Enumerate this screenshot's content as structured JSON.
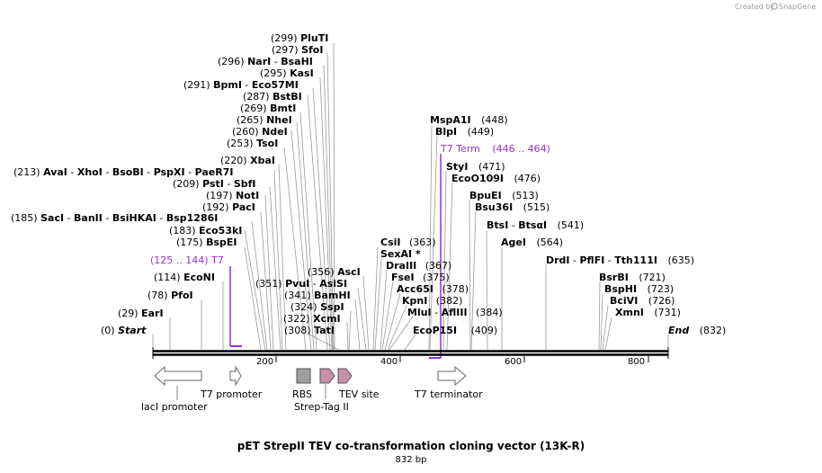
{
  "credit": {
    "prefix": "Created by",
    "brand": "SnapGene"
  },
  "title": "pET StrepII TEV co-transformation cloning vector (13K-R)",
  "length_label": "832 bp",
  "length_bp": 832,
  "ticks": [
    "200",
    "400",
    "600",
    "800"
  ],
  "colors": {
    "purple": "#9b30d0",
    "backbone": "#000000",
    "rbs": "#9e9e9e",
    "strep": "#c78fa8"
  },
  "sites": {
    "s_start": {
      "pos": "(0)",
      "name": "Start"
    },
    "s_ear": {
      "pos": "(29)",
      "name": "EarI"
    },
    "s_pfo": {
      "pos": "(78)",
      "name": "PfoI"
    },
    "s_eco": {
      "pos": "(114)",
      "name": "EcoNI"
    },
    "s_bspe": {
      "pos": "(175)",
      "name": "BspEI"
    },
    "s_eco53": {
      "pos": "(183)",
      "name": "Eco53kI"
    },
    "s_sac": {
      "pos": "(185)",
      "n1": "SacI",
      "n2": "BanII",
      "n3": "BsiHKAI",
      "n4": "Bsp1286I"
    },
    "s_pac": {
      "pos": "(192)",
      "name": "PacI"
    },
    "s_not": {
      "pos": "(197)",
      "name": "NotI"
    },
    "s_pst": {
      "pos": "(209)",
      "n1": "PstI",
      "n2": "SbfI"
    },
    "s_ava": {
      "pos": "(213)",
      "n1": "AvaI",
      "n2": "XhoI",
      "n3": "BsoBI",
      "n4": "PspXI",
      "n5": "PaeR7I"
    },
    "s_xba": {
      "pos": "(220)",
      "name": "XbaI"
    },
    "s_tso": {
      "pos": "(253)",
      "name": "TsoI"
    },
    "s_nde": {
      "pos": "(260)",
      "name": "NdeI"
    },
    "s_nhe": {
      "pos": "(265)",
      "name": "NheI"
    },
    "s_bmt": {
      "pos": "(269)",
      "name": "BmtI"
    },
    "s_bst": {
      "pos": "(287)",
      "name": "BstBI"
    },
    "s_bpm": {
      "pos": "(291)",
      "n1": "BpmI",
      "n2": "Eco57MI"
    },
    "s_kas": {
      "pos": "(295)",
      "name": "KasI"
    },
    "s_nar": {
      "pos": "(296)",
      "n1": "NarI",
      "n2": "BsaHI"
    },
    "s_sfo": {
      "pos": "(297)",
      "name": "SfoI"
    },
    "s_plu": {
      "pos": "(299)",
      "name": "PluTI"
    },
    "s_tat": {
      "pos": "(308)",
      "name": "TatI"
    },
    "s_xcm": {
      "pos": "(322)",
      "name": "XcmI"
    },
    "s_ssp": {
      "pos": "(324)",
      "name": "SspI"
    },
    "s_bam": {
      "pos": "(341)",
      "name": "BamHI"
    },
    "s_pvu": {
      "pos": "(351)",
      "n1": "PvuI",
      "n2": "AsiSI"
    },
    "s_asc": {
      "pos": "(356)",
      "name": "AscI"
    },
    "s_csi": {
      "pos": "(363)",
      "name": "CsiI"
    },
    "s_sexa": {
      "name": "SexAI *"
    },
    "s_dra": {
      "pos": "(367)",
      "name": "DraIII"
    },
    "s_fse": {
      "pos": "(375)",
      "name": "FseI"
    },
    "s_acc": {
      "pos": "(378)",
      "name": "Acc65I"
    },
    "s_kpn": {
      "pos": "(382)",
      "name": "KpnI"
    },
    "s_mlu": {
      "pos": "(384)",
      "n1": "MluI",
      "n2": "AflIII"
    },
    "s_ecop": {
      "pos": "(409)",
      "name": "EcoP15I"
    },
    "s_mspa": {
      "pos": "(448)",
      "name": "MspA1I"
    },
    "s_blp": {
      "pos": "(449)",
      "name": "BlpI"
    },
    "s_sty": {
      "pos": "(471)",
      "name": "StyI"
    },
    "s_eco109": {
      "pos": "(476)",
      "name": "EcoO109I"
    },
    "s_bpue": {
      "pos": "(513)",
      "name": "BpuEI"
    },
    "s_bsu": {
      "pos": "(515)",
      "name": "Bsu36I"
    },
    "s_bts": {
      "pos": "(541)",
      "n1": "BtsI",
      "n2": "BtsαI"
    },
    "s_age": {
      "pos": "(564)",
      "name": "AgeI"
    },
    "s_drd": {
      "pos": "(635)",
      "n1": "DrdI",
      "n2": "PflFI",
      "n3": "Tth111I"
    },
    "s_bsrb": {
      "pos": "(721)",
      "name": "BsrBI"
    },
    "s_bsph": {
      "pos": "(723)",
      "name": "BspHI"
    },
    "s_bci": {
      "pos": "(726)",
      "name": "BciVI"
    },
    "s_xmn": {
      "pos": "(731)",
      "name": "XmnI"
    },
    "s_end": {
      "pos": "(832)",
      "name": "End"
    }
  },
  "primer_labels": {
    "t7": {
      "range": "(125 .. 144)",
      "name": "T7"
    },
    "t7term": {
      "name": "T7 Term",
      "range": "(446 .. 464)"
    }
  },
  "features": {
    "laci": "lacI promoter",
    "t7prom": "T7 promoter",
    "rbs": "RBS",
    "strep": "Strep-Tag II",
    "tev": "TEV site",
    "t7term": "T7 terminator"
  }
}
